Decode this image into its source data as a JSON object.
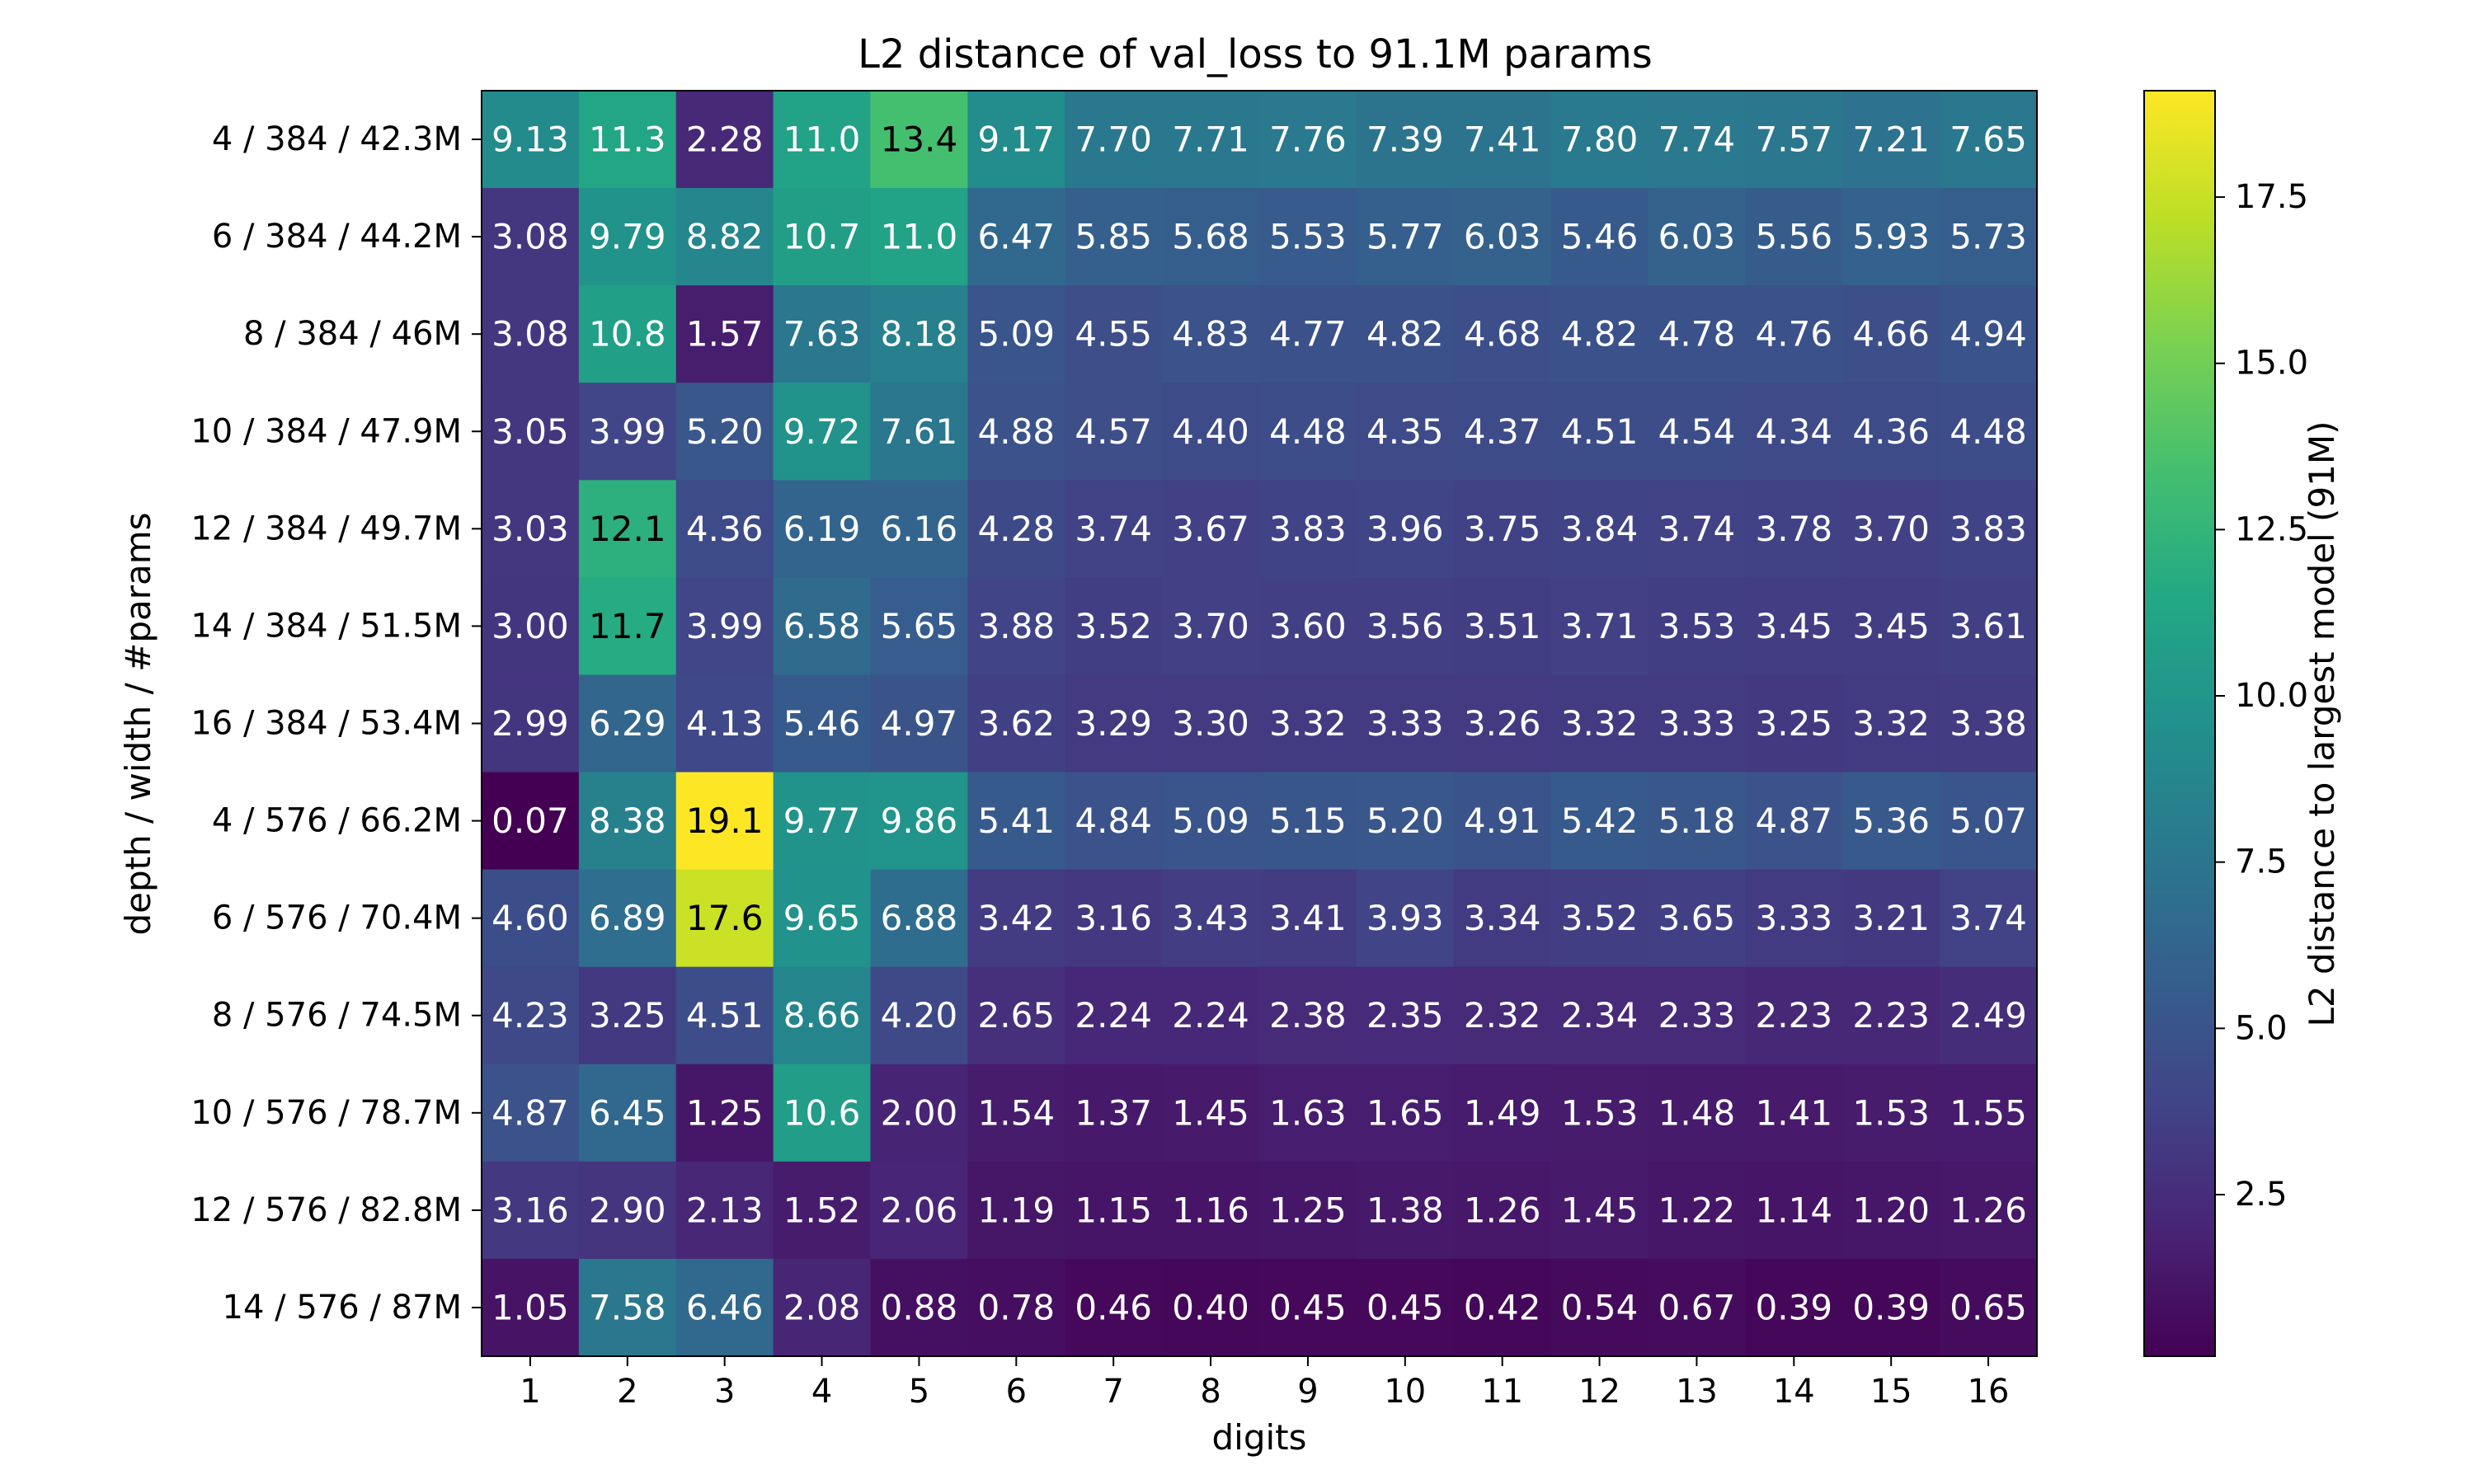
{
  "chart_data": {
    "type": "heatmap",
    "title": "L2 distance of val_loss to 91.1M params",
    "xlabel": "digits",
    "ylabel": "depth / width / #params",
    "colorbar_label": "L2 distance to largest model (91M)",
    "colormap": "viridis",
    "color_range": [
      0.07,
      19.1
    ],
    "colorbar_ticks": [
      "2.5",
      "5.0",
      "7.5",
      "10.0",
      "12.5",
      "15.0",
      "17.5"
    ],
    "colorbar_tick_values": [
      2.5,
      5.0,
      7.5,
      10.0,
      12.5,
      15.0,
      17.5
    ],
    "x_categories": [
      "1",
      "2",
      "3",
      "4",
      "5",
      "6",
      "7",
      "8",
      "9",
      "10",
      "11",
      "12",
      "13",
      "14",
      "15",
      "16"
    ],
    "y_categories": [
      "4 / 384 / 42.3M",
      "6 / 384 / 44.2M",
      "8 / 384 / 46M",
      "10 / 384 / 47.9M",
      "12 / 384 / 49.7M",
      "14 / 384 / 51.5M",
      "16 / 384 / 53.4M",
      "4 / 576 / 66.2M",
      "6 / 576 / 70.4M",
      "8 / 576 / 74.5M",
      "10 / 576 / 78.7M",
      "12 / 576 / 82.8M",
      "14 / 576 / 87M"
    ],
    "cell_labels": [
      [
        "9.13",
        "11.3",
        "2.28",
        "11.0",
        "13.4",
        "9.17",
        "7.70",
        "7.71",
        "7.76",
        "7.39",
        "7.41",
        "7.80",
        "7.74",
        "7.57",
        "7.21",
        "7.65"
      ],
      [
        "3.08",
        "9.79",
        "8.82",
        "10.7",
        "11.0",
        "6.47",
        "5.85",
        "5.68",
        "5.53",
        "5.77",
        "6.03",
        "5.46",
        "6.03",
        "5.56",
        "5.93",
        "5.73"
      ],
      [
        "3.08",
        "10.8",
        "1.57",
        "7.63",
        "8.18",
        "5.09",
        "4.55",
        "4.83",
        "4.77",
        "4.82",
        "4.68",
        "4.82",
        "4.78",
        "4.76",
        "4.66",
        "4.94"
      ],
      [
        "3.05",
        "3.99",
        "5.20",
        "9.72",
        "7.61",
        "4.88",
        "4.57",
        "4.40",
        "4.48",
        "4.35",
        "4.37",
        "4.51",
        "4.54",
        "4.34",
        "4.36",
        "4.48"
      ],
      [
        "3.03",
        "12.1",
        "4.36",
        "6.19",
        "6.16",
        "4.28",
        "3.74",
        "3.67",
        "3.83",
        "3.96",
        "3.75",
        "3.84",
        "3.74",
        "3.78",
        "3.70",
        "3.83"
      ],
      [
        "3.00",
        "11.7",
        "3.99",
        "6.58",
        "5.65",
        "3.88",
        "3.52",
        "3.70",
        "3.60",
        "3.56",
        "3.51",
        "3.71",
        "3.53",
        "3.45",
        "3.45",
        "3.61"
      ],
      [
        "2.99",
        "6.29",
        "4.13",
        "5.46",
        "4.97",
        "3.62",
        "3.29",
        "3.30",
        "3.32",
        "3.33",
        "3.26",
        "3.32",
        "3.33",
        "3.25",
        "3.32",
        "3.38"
      ],
      [
        "0.07",
        "8.38",
        "19.1",
        "9.77",
        "9.86",
        "5.41",
        "4.84",
        "5.09",
        "5.15",
        "5.20",
        "4.91",
        "5.42",
        "5.18",
        "4.87",
        "5.36",
        "5.07"
      ],
      [
        "4.60",
        "6.89",
        "17.6",
        "9.65",
        "6.88",
        "3.42",
        "3.16",
        "3.43",
        "3.41",
        "3.93",
        "3.34",
        "3.52",
        "3.65",
        "3.33",
        "3.21",
        "3.74"
      ],
      [
        "4.23",
        "3.25",
        "4.51",
        "8.66",
        "4.20",
        "2.65",
        "2.24",
        "2.24",
        "2.38",
        "2.35",
        "2.32",
        "2.34",
        "2.33",
        "2.23",
        "2.23",
        "2.49"
      ],
      [
        "4.87",
        "6.45",
        "1.25",
        "10.6",
        "2.00",
        "1.54",
        "1.37",
        "1.45",
        "1.63",
        "1.65",
        "1.49",
        "1.53",
        "1.48",
        "1.41",
        "1.53",
        "1.55"
      ],
      [
        "3.16",
        "2.90",
        "2.13",
        "1.52",
        "2.06",
        "1.19",
        "1.15",
        "1.16",
        "1.25",
        "1.38",
        "1.26",
        "1.45",
        "1.22",
        "1.14",
        "1.20",
        "1.26"
      ],
      [
        "1.05",
        "7.58",
        "6.46",
        "2.08",
        "0.88",
        "0.78",
        "0.46",
        "0.40",
        "0.45",
        "0.45",
        "0.42",
        "0.54",
        "0.67",
        "0.39",
        "0.39",
        "0.65"
      ]
    ]
  }
}
